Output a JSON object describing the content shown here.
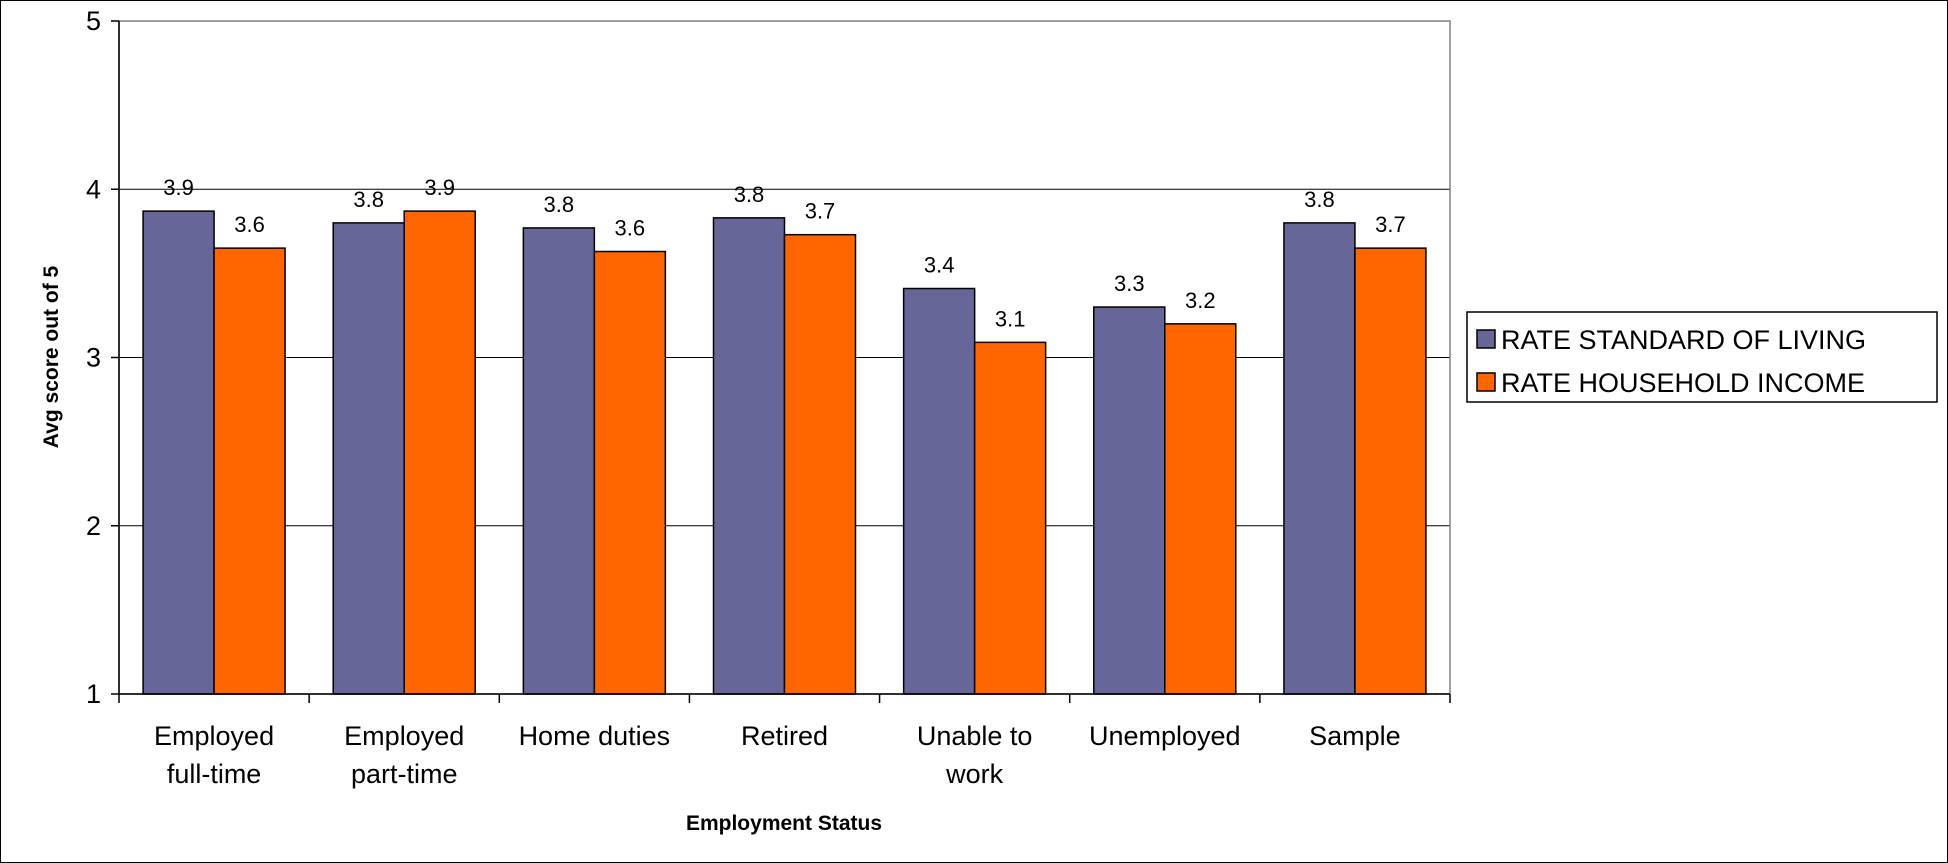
{
  "chart_data": {
    "type": "bar",
    "title": "",
    "xlabel": "Employment Status",
    "ylabel": "Avg score out of 5",
    "ylim": [
      1,
      5
    ],
    "yticks": [
      "1",
      "2",
      "3",
      "4",
      "5"
    ],
    "grid": true,
    "legend_position": "right",
    "categories": [
      [
        "Employed",
        "full-time"
      ],
      [
        "Employed",
        "part-time"
      ],
      [
        "Home duties"
      ],
      [
        "Retired"
      ],
      [
        "Unable to",
        "work"
      ],
      [
        "Unemployed"
      ],
      [
        "Sample"
      ]
    ],
    "series": [
      {
        "name": "RATE STANDARD OF LIVING",
        "color": "#666699",
        "values": [
          3.87,
          3.8,
          3.77,
          3.83,
          3.41,
          3.3,
          3.8
        ],
        "labels": [
          "3.9",
          "3.8",
          "3.8",
          "3.8",
          "3.4",
          "3.3",
          "3.8"
        ]
      },
      {
        "name": "RATE HOUSEHOLD INCOME",
        "color": "#FF6600",
        "values": [
          3.65,
          3.87,
          3.63,
          3.73,
          3.09,
          3.2,
          3.65
        ],
        "labels": [
          "3.6",
          "3.9",
          "3.6",
          "3.7",
          "3.1",
          "3.2",
          "3.7"
        ]
      }
    ]
  }
}
